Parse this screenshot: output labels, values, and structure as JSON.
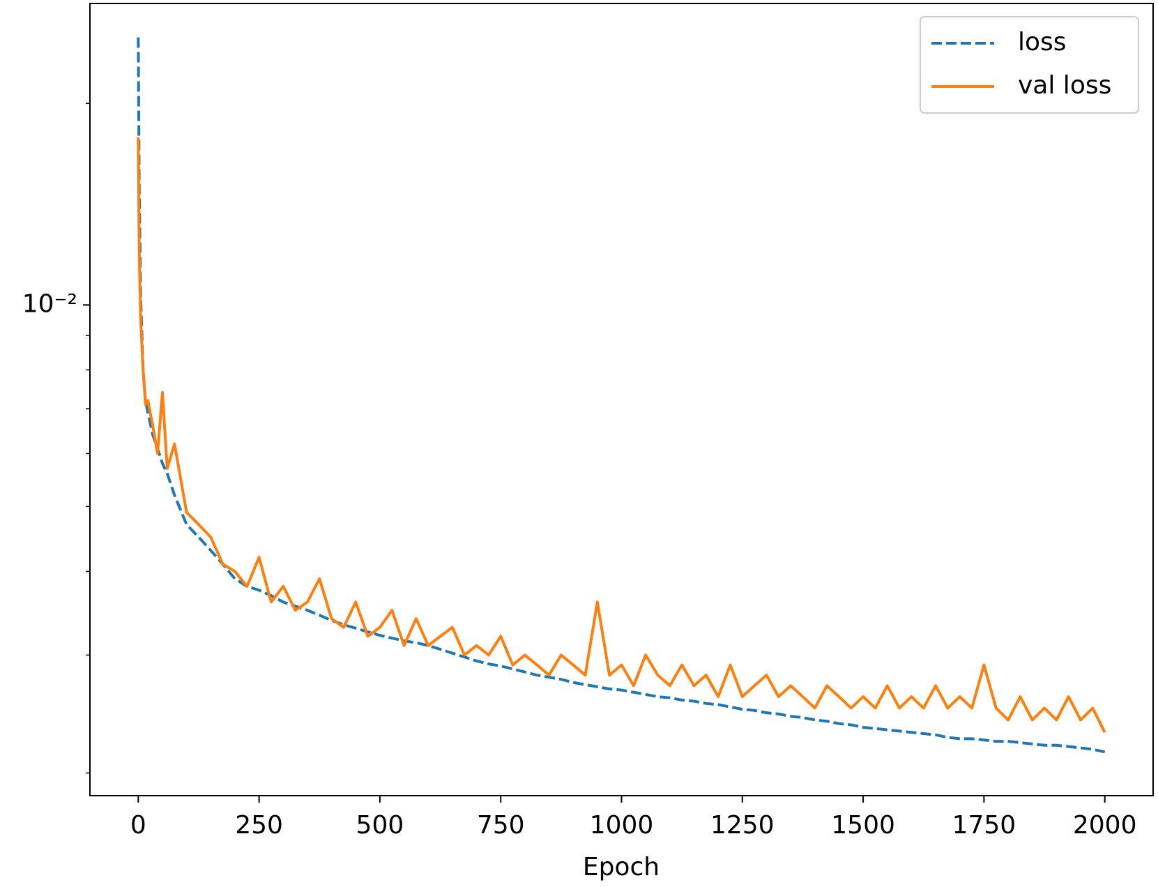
{
  "chart_data": {
    "type": "line",
    "x_label": "Epoch",
    "log_y": true,
    "legend": "upper right",
    "xlim": [
      -100,
      2100
    ],
    "xticks": [
      0,
      250,
      500,
      750,
      1000,
      1250,
      1500,
      1750,
      2000
    ],
    "ylim": [
      0.00185,
      0.0282
    ],
    "yticks": [
      {
        "value": 0.01,
        "label": "10⁻²"
      }
    ],
    "minor_yticks": [
      0.002,
      0.003,
      0.004,
      0.005,
      0.006,
      0.007,
      0.008,
      0.009,
      0.02
    ],
    "x": [
      0,
      2,
      5,
      10,
      15,
      20,
      30,
      40,
      50,
      60,
      75,
      100,
      125,
      150,
      175,
      200,
      225,
      250,
      275,
      300,
      325,
      350,
      375,
      400,
      425,
      450,
      475,
      500,
      525,
      550,
      575,
      600,
      625,
      650,
      675,
      700,
      725,
      750,
      775,
      800,
      825,
      850,
      875,
      900,
      925,
      950,
      975,
      1000,
      1025,
      1050,
      1075,
      1100,
      1125,
      1150,
      1175,
      1200,
      1225,
      1250,
      1275,
      1300,
      1325,
      1350,
      1375,
      1400,
      1425,
      1450,
      1475,
      1500,
      1525,
      1550,
      1575,
      1600,
      1625,
      1650,
      1675,
      1700,
      1725,
      1750,
      1775,
      1800,
      1825,
      1850,
      1875,
      1900,
      1925,
      1950,
      1975,
      2000
    ],
    "series": [
      {
        "name": "loss",
        "color": "#1f77b4",
        "dash": true,
        "values": [
          0.0251,
          0.015,
          0.0103,
          0.008,
          0.0072,
          0.0069,
          0.0064,
          0.0061,
          0.0058,
          0.0056,
          0.0052,
          0.0047,
          0.0045,
          0.0043,
          0.0041,
          0.0039,
          0.0038,
          0.00375,
          0.00368,
          0.0036,
          0.00355,
          0.0035,
          0.00344,
          0.00338,
          0.00333,
          0.00329,
          0.00325,
          0.00321,
          0.00318,
          0.00315,
          0.00313,
          0.0031,
          0.00306,
          0.00302,
          0.00298,
          0.00294,
          0.00291,
          0.00289,
          0.00286,
          0.00283,
          0.0028,
          0.00278,
          0.00276,
          0.00273,
          0.00271,
          0.00269,
          0.00267,
          0.00266,
          0.00264,
          0.00262,
          0.0026,
          0.00259,
          0.00257,
          0.00256,
          0.00254,
          0.00253,
          0.00251,
          0.00249,
          0.00248,
          0.00246,
          0.00245,
          0.00243,
          0.00242,
          0.0024,
          0.00239,
          0.00237,
          0.00236,
          0.00234,
          0.00233,
          0.00232,
          0.00231,
          0.0023,
          0.00229,
          0.00228,
          0.00226,
          0.00225,
          0.00225,
          0.00224,
          0.00223,
          0.00223,
          0.00222,
          0.00221,
          0.0022,
          0.0022,
          0.00219,
          0.00218,
          0.00217,
          0.00215
        ]
      },
      {
        "name": "val loss",
        "color": "#ff7f0e",
        "dash": false,
        "values": [
          0.0178,
          0.012,
          0.0095,
          0.008,
          0.0071,
          0.0072,
          0.0066,
          0.006,
          0.0074,
          0.0057,
          0.0062,
          0.0049,
          0.0047,
          0.0045,
          0.0041,
          0.004,
          0.0038,
          0.0042,
          0.0036,
          0.0038,
          0.0035,
          0.0036,
          0.0039,
          0.0034,
          0.0033,
          0.0036,
          0.0032,
          0.0033,
          0.0035,
          0.0031,
          0.0034,
          0.0031,
          0.0032,
          0.0033,
          0.003,
          0.0031,
          0.003,
          0.0032,
          0.0029,
          0.003,
          0.0029,
          0.0028,
          0.003,
          0.0029,
          0.0028,
          0.0036,
          0.0028,
          0.0029,
          0.0027,
          0.003,
          0.0028,
          0.0027,
          0.0029,
          0.0027,
          0.0028,
          0.0026,
          0.0029,
          0.0026,
          0.0027,
          0.0028,
          0.0026,
          0.0027,
          0.0026,
          0.0025,
          0.0027,
          0.0026,
          0.0025,
          0.0026,
          0.0025,
          0.0027,
          0.0025,
          0.0026,
          0.0025,
          0.0027,
          0.0025,
          0.0026,
          0.0025,
          0.0029,
          0.0025,
          0.0024,
          0.0026,
          0.0024,
          0.0025,
          0.0024,
          0.0026,
          0.0024,
          0.0025,
          0.0023
        ]
      }
    ]
  }
}
